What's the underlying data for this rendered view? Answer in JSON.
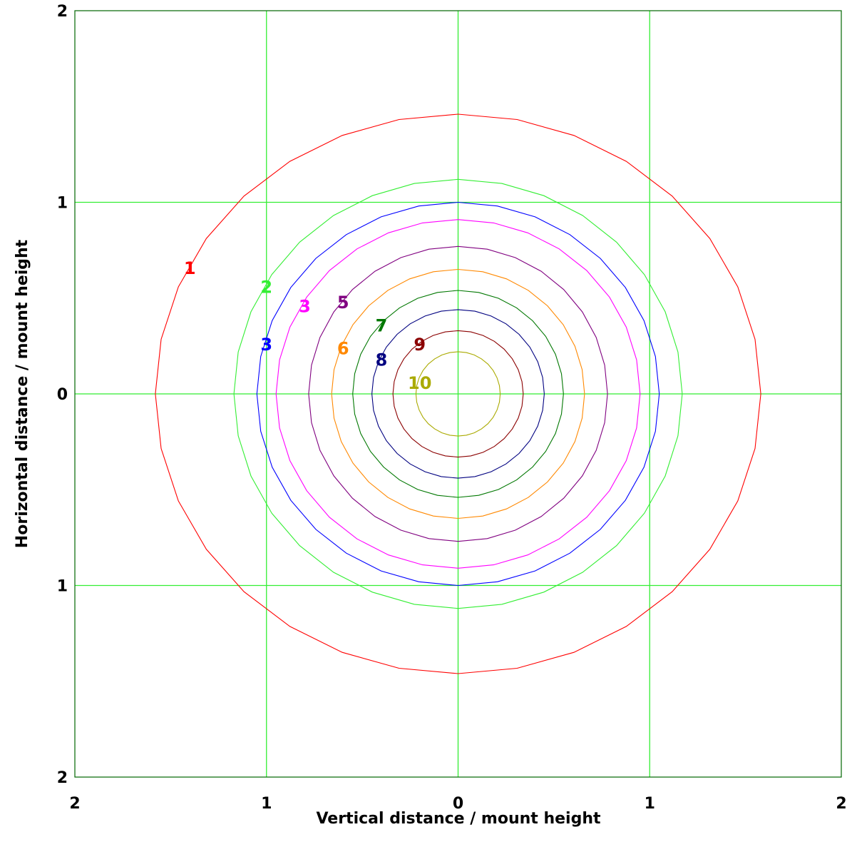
{
  "chart_data": {
    "type": "contour",
    "xlabel": "Vertical distance / mount height",
    "ylabel": "Horizontal distance / mount height",
    "xlim": [
      -2,
      2
    ],
    "ylim": [
      -2,
      2
    ],
    "x_ticks": [
      -2,
      -1,
      0,
      1,
      2
    ],
    "y_ticks": [
      -2,
      -1,
      0,
      1,
      2
    ],
    "x_tick_labels": [
      "2",
      "1",
      "0",
      "1",
      "2"
    ],
    "y_tick_labels": [
      "2",
      "1",
      "0",
      "1",
      "2"
    ],
    "grid": true,
    "grid_color": "#33ee33",
    "background": "#ffffff",
    "contours": [
      {
        "label": "1",
        "color": "#ff0000",
        "rx": 1.58,
        "ry": 1.46,
        "label_at": [
          -1.4,
          0.66
        ]
      },
      {
        "label": "2",
        "color": "#33ee33",
        "rx": 1.17,
        "ry": 1.12,
        "label_at": [
          -1.0,
          0.56
        ]
      },
      {
        "label": "3",
        "color": "#0000ff",
        "rx": 1.05,
        "ry": 1.0,
        "label_at": [
          -1.0,
          0.26
        ]
      },
      {
        "label": "3",
        "color": "#ff00ff",
        "rx": 0.95,
        "ry": 0.91,
        "label_at": [
          -0.8,
          0.46
        ]
      },
      {
        "label": "5",
        "color": "#800080",
        "rx": 0.78,
        "ry": 0.77,
        "label_at": [
          -0.6,
          0.48
        ]
      },
      {
        "label": "6",
        "color": "#ff8800",
        "rx": 0.66,
        "ry": 0.65,
        "label_at": [
          -0.6,
          0.24
        ]
      },
      {
        "label": "7",
        "color": "#007700",
        "rx": 0.55,
        "ry": 0.54,
        "label_at": [
          -0.4,
          0.36
        ]
      },
      {
        "label": "8",
        "color": "#000080",
        "rx": 0.45,
        "ry": 0.44,
        "label_at": [
          -0.4,
          0.18
        ]
      },
      {
        "label": "9",
        "color": "#8b0000",
        "rx": 0.34,
        "ry": 0.33,
        "label_at": [
          -0.2,
          0.26
        ]
      },
      {
        "label": "10",
        "color": "#aaaa00",
        "rx": 0.22,
        "ry": 0.22,
        "label_at": [
          -0.2,
          0.06
        ]
      }
    ]
  }
}
